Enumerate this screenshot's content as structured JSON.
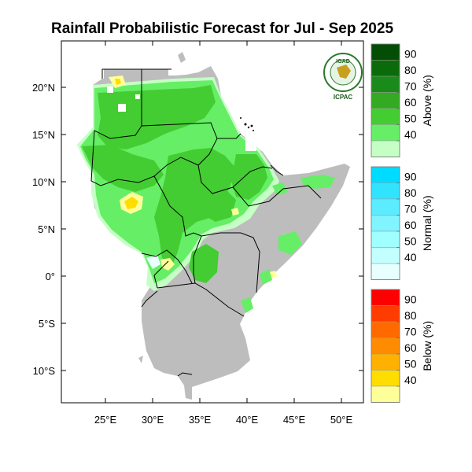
{
  "title": "Rainfall Probabilistic Forecast for Jul - Sep 2025",
  "map": {
    "lat_ticks": [
      "20°N",
      "15°N",
      "10°N",
      "5°N",
      "0°",
      "5°S",
      "10°S"
    ],
    "lon_ticks": [
      "25°E",
      "30°E",
      "35°E",
      "40°E",
      "45°E",
      "50°E"
    ],
    "lon_range": [
      20.5,
      52
    ],
    "lat_range": [
      -13.5,
      24.5
    ]
  },
  "logo": {
    "top_text": "IGAD",
    "bottom_text": "ICPAC"
  },
  "legends": [
    {
      "name": "Above (%)",
      "values": [
        "40",
        "50",
        "60",
        "70",
        "80",
        "90"
      ],
      "colors": [
        "#c6ffc6",
        "#66ee66",
        "#44cc33",
        "#33aa22",
        "#1a8a1a",
        "#0b6b0b",
        "#044d04"
      ]
    },
    {
      "name": "Normal (%)",
      "values": [
        "40",
        "50",
        "60",
        "70",
        "80",
        "90"
      ],
      "colors": [
        "#e8ffff",
        "#c4ffff",
        "#a0ffff",
        "#80f4ff",
        "#5cecff",
        "#30e4ff",
        "#00dcff"
      ]
    },
    {
      "name": "Below (%)",
      "values": [
        "40",
        "50",
        "60",
        "70",
        "80",
        "90"
      ],
      "colors": [
        "#ffff99",
        "#ffdd00",
        "#ffb000",
        "#ff8c00",
        "#ff6a00",
        "#ff3c00",
        "#ff0000"
      ]
    }
  ],
  "colors": {
    "land_grey": "#bdbdbd",
    "above_40": "#c6ffc6",
    "above_50": "#66ee66",
    "above_60": "#44cc33",
    "normal_40": "#e8ffff",
    "below_40": "#ffff99",
    "below_50": "#ffdd00"
  }
}
